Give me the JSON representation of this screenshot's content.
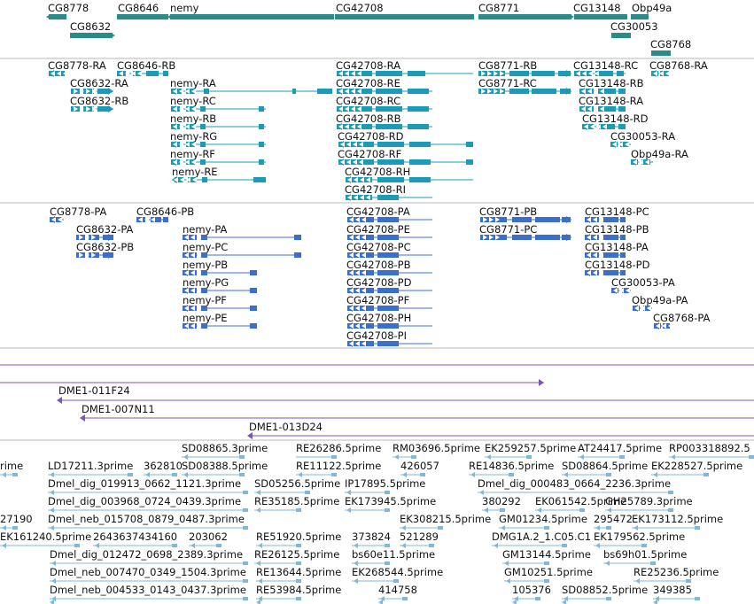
{
  "colors": {
    "gene": "#2a8c89",
    "transcript": "#1a9bb8",
    "protein": "#3a6fd0",
    "clone": "#7a56b8",
    "est": "#7fb8dc",
    "divider": "#b8b8b8"
  },
  "genes_track": {
    "labels": [
      "CG8778",
      "CG8646",
      "nemy",
      "CG42708",
      "CG8771",
      "CG13148",
      "Obp49a",
      "CG8632",
      "CG30053",
      "CG8768"
    ]
  },
  "transcripts_track": {
    "labels": [
      "CG8778-RA",
      "CG8646-RB",
      "CG42708-RA",
      "CG8771-RB",
      "CG13148-RC",
      "CG8768-RA",
      "CG8632-RA",
      "nemy-RA",
      "CG42708-RE",
      "CG8771-RC",
      "CG13148-RB",
      "CG8632-RB",
      "nemy-RC",
      "CG42708-RC",
      "CG13148-RA",
      "nemy-RB",
      "CG42708-RB",
      "CG13148-RD",
      "nemy-RG",
      "CG42708-RD",
      "CG30053-RA",
      "nemy-RF",
      "CG42708-RF",
      "Obp49a-RA",
      "nemy-RE",
      "CG42708-RH",
      "CG42708-RI"
    ]
  },
  "proteins_track": {
    "labels": [
      "CG8778-PA",
      "CG8646-PB",
      "CG42708-PA",
      "CG8771-PB",
      "CG13148-PC",
      "CG8632-PA",
      "nemy-PA",
      "CG42708-PE",
      "CG8771-PC",
      "CG13148-PB",
      "CG8632-PB",
      "nemy-PC",
      "CG42708-PC",
      "CG13148-PA",
      "nemy-PB",
      "CG42708-PB",
      "CG13148-PD",
      "nemy-PG",
      "CG42708-PD",
      "CG30053-PA",
      "nemy-PF",
      "CG42708-PF",
      "Obp49a-PA",
      "nemy-PE",
      "CG42708-PH",
      "CG8768-PA",
      "CG42708-PI"
    ]
  },
  "clones_track": {
    "labels": [
      "DME1-011F24",
      "DME1-007N11",
      "DME1-013D24"
    ]
  },
  "est_track": {
    "labels": [
      "SD08865.3prime",
      "RE26286.5prime",
      "RM03696.5prime",
      "EK259257.5prime",
      "AT24417.5prime",
      "RP003318892.5",
      "rime",
      "LD17211.3prime",
      "362810",
      "SD08388.5prime",
      "RE11122.5prime",
      "426057",
      "RE14836.5prime",
      "SD08864.5prime",
      "EK228527.5prime",
      "Dmel_dig_019913_0662_1121.3prime",
      "SD05256.5prime",
      "IP17895.5prime",
      "Dmel_dig_000483_0664_2236.3prime",
      "Dmel_dig_003968_0724_0439.3prime",
      "RE35185.5prime",
      "EK173945.5prime",
      "380292",
      "EK061542.5prime",
      "GH25789.3prime",
      "27190",
      "Dmel_neb_015708_0879_0487.3prime",
      "EK308215.5prime",
      "GM01234.5prime",
      "295472",
      "EK173112.5prime",
      "EK161240.5prime",
      "2643637434160",
      "203062",
      "RE51920.5prime",
      "373824",
      "521289",
      "DMG1A.2_1.C05.C1",
      "EK179562.5prime",
      "Dmel_dig_012472_0698_2389.3prime",
      "RE26125.5prime",
      "bs60e11.5prime",
      "GM13144.5prime",
      "bs69h01.5prime",
      "Dmel_neb_007470_0349_1504.3prime",
      "RE13644.5prime",
      "EK268544.5prime",
      "GM10251.5prime",
      "RE25236.5prime",
      "Dmel_neb_004533_0143_0437.3prime",
      "RE53984.5prime",
      "414758",
      "105376",
      "SD08852.5prime",
      "349385"
    ]
  }
}
